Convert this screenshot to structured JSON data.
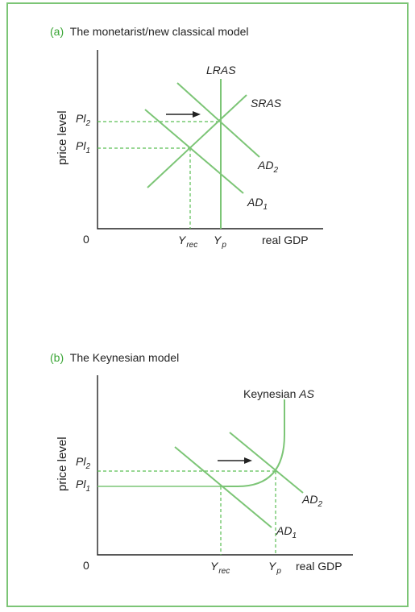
{
  "panel_a": {
    "letter": "(a)",
    "title": "The monetarist/new classical model",
    "y_axis_label": "price level",
    "origin": "0",
    "x_axis_label": "real GDP",
    "curves": {
      "lras": "LRAS",
      "sras": "SRAS",
      "ad2_main": "AD",
      "ad2_sub": "2",
      "ad1_main": "AD",
      "ad1_sub": "1"
    },
    "y_ticks": {
      "pl2_main": "Pl",
      "pl2_sub": "2",
      "pl1_main": "Pl",
      "pl1_sub": "1"
    },
    "x_ticks": {
      "yrec_main": "Y",
      "yrec_sub": "rec",
      "yp_main": "Y",
      "yp_sub": "p"
    }
  },
  "panel_b": {
    "letter": "(b)",
    "title": "The Keynesian model",
    "y_axis_label": "price level",
    "origin": "0",
    "x_axis_label": "real GDP",
    "curves": {
      "kas_prefix": "Keynesian ",
      "kas_italic": "AS",
      "ad2_main": "AD",
      "ad2_sub": "2",
      "ad1_main": "AD",
      "ad1_sub": "1"
    },
    "y_ticks": {
      "pl2_main": "Pl",
      "pl2_sub": "2",
      "pl1_main": "Pl",
      "pl1_sub": "1"
    },
    "x_ticks": {
      "yrec_main": "Y",
      "yrec_sub": "rec",
      "yp_main": "Y",
      "yp_sub": "p"
    }
  },
  "colors": {
    "curve": "#7cc576",
    "dash": "#5bbf53",
    "frame": "#7cc576",
    "accent": "#3aa535"
  }
}
